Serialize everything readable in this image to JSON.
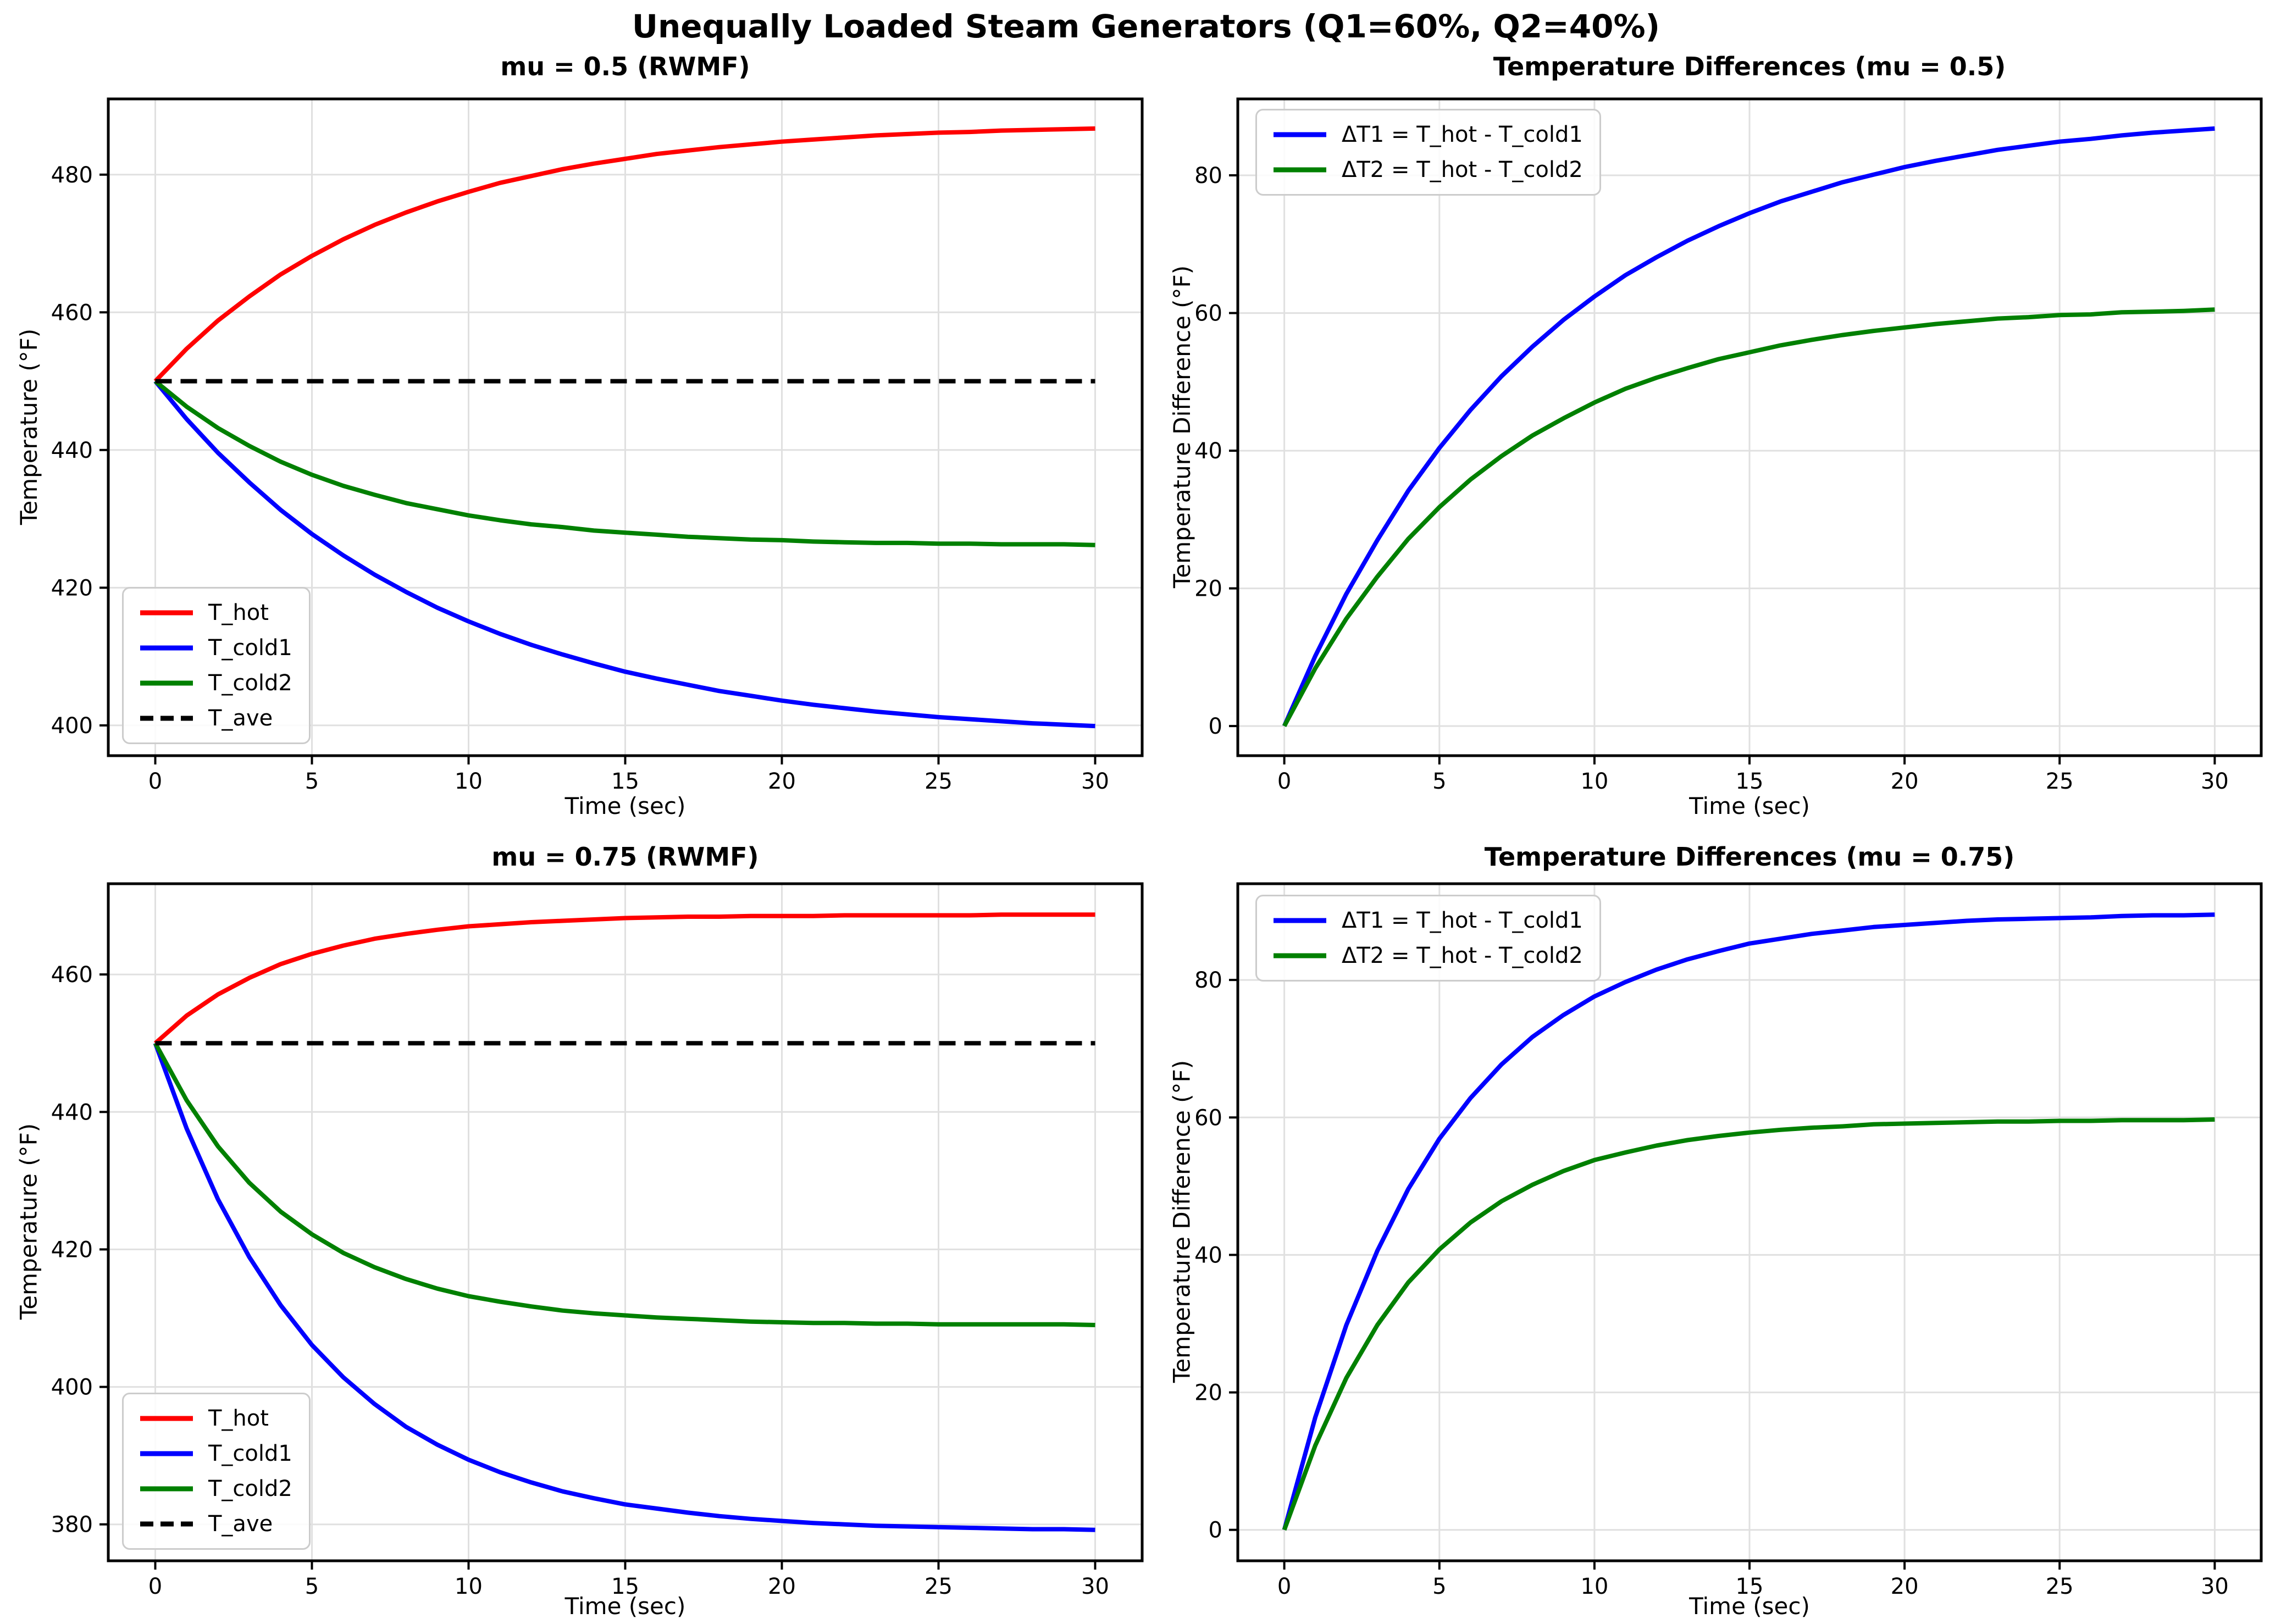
{
  "suptitle": "Unequally Loaded Steam Generators (Q1=60%, Q2=40%)",
  "colors": {
    "t_hot": "#ff0000",
    "t_cold1": "#0000ff",
    "t_cold2": "#008000",
    "t_ave": "#000000",
    "grid": "#e0e0e0",
    "spine": "#000000",
    "legend_border": "#cccccc"
  },
  "chart_data": [
    {
      "id": "tl",
      "type": "line",
      "title": "mu = 0.5 (RWMF)",
      "xlabel": "Time (sec)",
      "ylabel": "Temperature (°F)",
      "grid": true,
      "legend_position": "lower left",
      "xlim": [
        -1.5,
        31.5
      ],
      "ylim": [
        395.6,
        491.0
      ],
      "xticks": [
        0,
        5,
        10,
        15,
        20,
        25,
        30
      ],
      "yticks": [
        400,
        420,
        440,
        460,
        480
      ],
      "x": [
        0,
        1,
        2,
        3,
        4,
        5,
        6,
        7,
        8,
        9,
        10,
        11,
        12,
        13,
        14,
        15,
        16,
        17,
        18,
        19,
        20,
        21,
        22,
        23,
        24,
        25,
        26,
        27,
        28,
        29,
        30
      ],
      "series": [
        {
          "name": "T_hot",
          "color": "#ff0000",
          "style": "solid",
          "values": [
            450,
            454.7,
            458.8,
            462.3,
            465.5,
            468.2,
            470.6,
            472.7,
            474.5,
            476.1,
            477.5,
            478.8,
            479.8,
            480.8,
            481.6,
            482.3,
            483.0,
            483.5,
            484.0,
            484.4,
            484.8,
            485.1,
            485.4,
            485.7,
            485.9,
            486.1,
            486.2,
            486.4,
            486.5,
            486.6,
            486.7
          ]
        },
        {
          "name": "T_cold1",
          "color": "#0000ff",
          "style": "solid",
          "values": [
            450,
            444.5,
            439.6,
            435.3,
            431.3,
            427.8,
            424.7,
            421.9,
            419.4,
            417.1,
            415.1,
            413.3,
            411.7,
            410.3,
            409.0,
            407.8,
            406.8,
            405.9,
            405.0,
            404.3,
            403.6,
            403.0,
            402.5,
            402.0,
            401.6,
            401.2,
            400.9,
            400.6,
            400.3,
            400.1,
            399.9
          ]
        },
        {
          "name": "T_cold2",
          "color": "#008000",
          "style": "solid",
          "values": [
            450,
            446.3,
            443.2,
            440.6,
            438.3,
            436.4,
            434.8,
            433.5,
            432.3,
            431.4,
            430.5,
            429.8,
            429.2,
            428.8,
            428.3,
            428.0,
            427.7,
            427.4,
            427.2,
            427.0,
            426.9,
            426.7,
            426.6,
            426.5,
            426.5,
            426.4,
            426.4,
            426.3,
            426.3,
            426.3,
            426.2
          ]
        },
        {
          "name": "T_ave",
          "color": "#000000",
          "style": "dashed",
          "constant": 450
        }
      ]
    },
    {
      "id": "tr",
      "type": "line",
      "title": "Temperature Differences (mu = 0.5)",
      "xlabel": "Time (sec)",
      "ylabel": "Temperature Difference (°F)",
      "grid": true,
      "legend_position": "upper left",
      "xlim": [
        -1.5,
        31.5
      ],
      "ylim": [
        -4.3,
        91.1
      ],
      "xticks": [
        0,
        5,
        10,
        15,
        20,
        25,
        30
      ],
      "yticks": [
        0,
        20,
        40,
        60,
        80
      ],
      "x": [
        0,
        1,
        2,
        3,
        4,
        5,
        6,
        7,
        8,
        9,
        10,
        11,
        12,
        13,
        14,
        15,
        16,
        17,
        18,
        19,
        20,
        21,
        22,
        23,
        24,
        25,
        26,
        27,
        28,
        29,
        30
      ],
      "series": [
        {
          "name": "ΔT1 = T_hot - T_cold1",
          "color": "#0000ff",
          "style": "solid",
          "values": [
            0,
            10.2,
            19.2,
            27.0,
            34.2,
            40.4,
            45.9,
            50.8,
            55.1,
            59.0,
            62.4,
            65.5,
            68.1,
            70.5,
            72.6,
            74.5,
            76.2,
            77.6,
            79.0,
            80.1,
            81.2,
            82.1,
            82.9,
            83.7,
            84.3,
            84.9,
            85.3,
            85.8,
            86.2,
            86.5,
            86.8
          ]
        },
        {
          "name": "ΔT2 = T_hot - T_cold2",
          "color": "#008000",
          "style": "solid",
          "values": [
            0,
            8.4,
            15.6,
            21.7,
            27.2,
            31.8,
            35.8,
            39.2,
            42.2,
            44.7,
            47.0,
            49.0,
            50.6,
            52.0,
            53.3,
            54.3,
            55.3,
            56.1,
            56.8,
            57.4,
            57.9,
            58.4,
            58.8,
            59.2,
            59.4,
            59.7,
            59.8,
            60.1,
            60.2,
            60.3,
            60.5
          ]
        }
      ]
    },
    {
      "id": "bl",
      "type": "line",
      "title": "mu = 0.75 (RWMF)",
      "xlabel": "Time (sec)",
      "ylabel": "Temperature (°F)",
      "grid": true,
      "legend_position": "lower left",
      "xlim": [
        -1.5,
        31.5
      ],
      "ylim": [
        374.7,
        473.2
      ],
      "xticks": [
        0,
        5,
        10,
        15,
        20,
        25,
        30
      ],
      "yticks": [
        380,
        400,
        420,
        440,
        460
      ],
      "x": [
        0,
        1,
        2,
        3,
        4,
        5,
        6,
        7,
        8,
        9,
        10,
        11,
        12,
        13,
        14,
        15,
        16,
        17,
        18,
        19,
        20,
        21,
        22,
        23,
        24,
        25,
        26,
        27,
        28,
        29,
        30
      ],
      "series": [
        {
          "name": "T_hot",
          "color": "#ff0000",
          "style": "solid",
          "values": [
            450,
            454.0,
            457.1,
            459.5,
            461.5,
            463.0,
            464.2,
            465.2,
            465.9,
            466.5,
            467.0,
            467.3,
            467.6,
            467.8,
            468.0,
            468.2,
            468.3,
            468.4,
            468.4,
            468.5,
            468.5,
            468.5,
            468.6,
            468.6,
            468.6,
            468.6,
            468.6,
            468.7,
            468.7,
            468.7,
            468.7
          ]
        },
        {
          "name": "T_cold1",
          "color": "#0000ff",
          "style": "solid",
          "values": [
            450,
            437.6,
            427.3,
            418.9,
            411.9,
            406.1,
            401.4,
            397.5,
            394.2,
            391.6,
            389.4,
            387.6,
            386.1,
            384.8,
            383.8,
            382.9,
            382.3,
            381.7,
            381.2,
            380.8,
            380.5,
            380.2,
            380.0,
            379.8,
            379.7,
            379.6,
            379.5,
            379.4,
            379.3,
            379.3,
            379.2
          ]
        },
        {
          "name": "T_cold2",
          "color": "#008000",
          "style": "solid",
          "values": [
            450,
            441.7,
            435.0,
            429.7,
            425.5,
            422.2,
            419.5,
            417.4,
            415.7,
            414.3,
            413.2,
            412.4,
            411.7,
            411.1,
            410.7,
            410.4,
            410.1,
            409.9,
            409.7,
            409.5,
            409.4,
            409.3,
            409.3,
            409.2,
            409.2,
            409.1,
            409.1,
            409.1,
            409.1,
            409.1,
            409.0
          ]
        },
        {
          "name": "T_ave",
          "color": "#000000",
          "style": "dashed",
          "constant": 450
        }
      ]
    },
    {
      "id": "br",
      "type": "line",
      "title": "Temperature Differences (mu = 0.75)",
      "xlabel": "Time (sec)",
      "ylabel": "Temperature Difference (°F)",
      "grid": true,
      "legend_position": "upper left",
      "xlim": [
        -1.5,
        31.5
      ],
      "ylim": [
        -4.5,
        94.0
      ],
      "xticks": [
        0,
        5,
        10,
        15,
        20,
        25,
        30
      ],
      "yticks": [
        0,
        20,
        40,
        60,
        80
      ],
      "x": [
        0,
        1,
        2,
        3,
        4,
        5,
        6,
        7,
        8,
        9,
        10,
        11,
        12,
        13,
        14,
        15,
        16,
        17,
        18,
        19,
        20,
        21,
        22,
        23,
        24,
        25,
        26,
        27,
        28,
        29,
        30
      ],
      "series": [
        {
          "name": "ΔT1 = T_hot - T_cold1",
          "color": "#0000ff",
          "style": "solid",
          "values": [
            0,
            16.4,
            29.8,
            40.6,
            49.6,
            56.9,
            62.8,
            67.7,
            71.7,
            74.9,
            77.6,
            79.7,
            81.5,
            83.0,
            84.2,
            85.3,
            86.0,
            86.7,
            87.2,
            87.7,
            88.0,
            88.3,
            88.6,
            88.8,
            88.9,
            89.0,
            89.1,
            89.3,
            89.4,
            89.4,
            89.5
          ]
        },
        {
          "name": "ΔT2 = T_hot - T_cold2",
          "color": "#008000",
          "style": "solid",
          "values": [
            0,
            12.3,
            22.1,
            29.8,
            36.0,
            40.8,
            44.7,
            47.8,
            50.2,
            52.2,
            53.8,
            54.9,
            55.9,
            56.7,
            57.3,
            57.8,
            58.2,
            58.5,
            58.7,
            59.0,
            59.1,
            59.2,
            59.3,
            59.4,
            59.4,
            59.5,
            59.5,
            59.6,
            59.6,
            59.6,
            59.7
          ]
        }
      ]
    }
  ]
}
